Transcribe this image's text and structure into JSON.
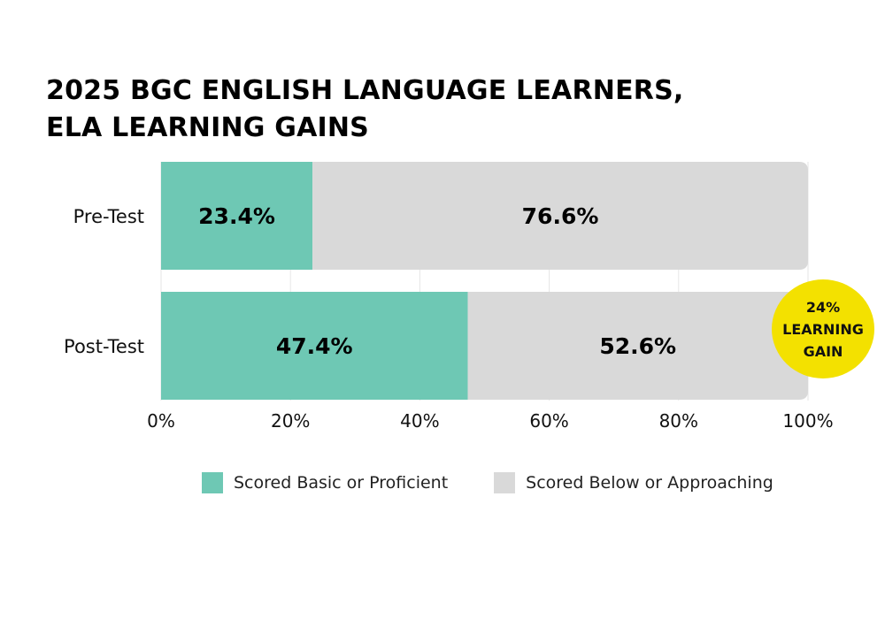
{
  "title_lines": [
    "2025 BGC ENGLISH LANGUAGE LEARNERS,",
    "ELA LEARNING GAINS"
  ],
  "chart_data": {
    "type": "bar",
    "orientation": "horizontal",
    "stacked": true,
    "title": "2025 BGC ENGLISH LANGUAGE LEARNERS, ELA LEARNING GAINS",
    "categories": [
      "Pre-Test",
      "Post-Test"
    ],
    "series": [
      {
        "name": "Scored Basic or Proficient",
        "values": [
          23.4,
          47.4
        ],
        "labels": [
          "23.4%",
          "47.4%"
        ],
        "color": "#6ec8b4"
      },
      {
        "name": "Scored Below or Approaching",
        "values": [
          76.6,
          52.6
        ],
        "labels": [
          "76.6%",
          "52.6%"
        ],
        "color": "#d9d9d9"
      }
    ],
    "xlim": [
      0,
      100
    ],
    "xticks": [
      "0%",
      "20%",
      "40%",
      "60%",
      "80%",
      "100%"
    ],
    "grid": true,
    "legend_position": "bottom",
    "annotation_lines": [
      "24%",
      "LEARNING",
      "GAIN"
    ],
    "annotation_color": "#f3e100"
  }
}
